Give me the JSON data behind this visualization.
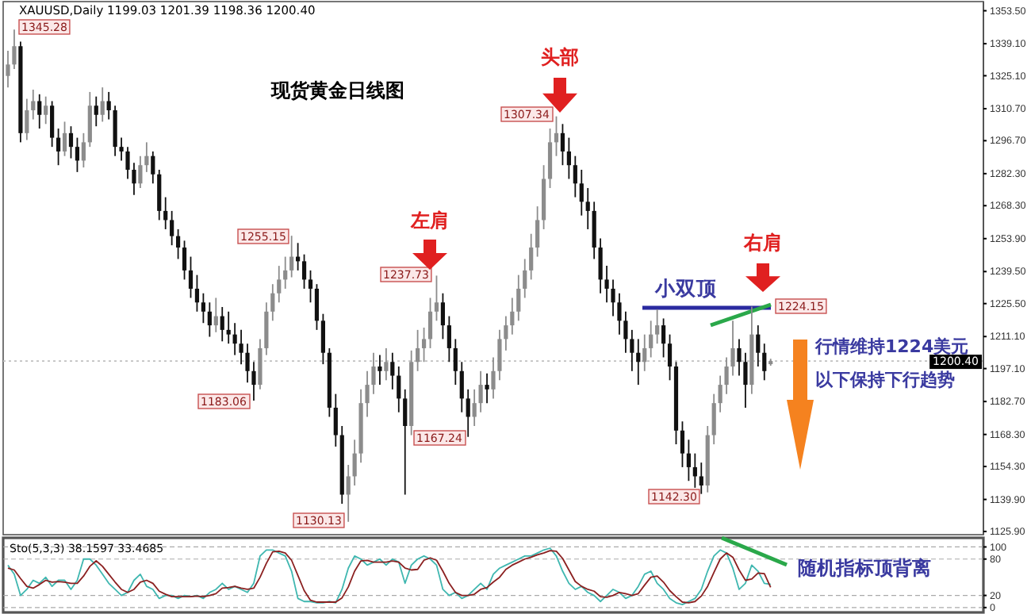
{
  "chart_data": [
    {
      "type": "candlestick",
      "title": "现货黄金日线图",
      "subtitle": "XAUUSD,Daily  1199.03 1201.39 1198.36 1200.40",
      "categories": [
        null,
        null,
        null,
        null,
        null,
        null,
        null,
        null,
        null,
        null,
        null,
        null,
        null,
        null,
        null,
        null,
        null,
        null,
        null,
        null,
        null,
        null,
        null,
        null,
        null,
        null,
        null,
        null,
        null,
        null,
        null,
        null,
        null,
        null,
        null,
        null,
        null,
        null,
        null,
        null,
        null,
        null,
        null,
        null,
        null,
        null,
        null,
        null,
        null,
        null,
        null,
        null,
        null,
        null,
        null,
        null,
        null,
        null,
        null,
        null,
        null,
        null,
        null,
        null,
        null,
        null,
        null,
        null,
        null,
        null,
        null,
        null,
        null,
        null,
        null,
        null,
        null,
        null,
        null,
        null,
        null,
        null,
        null,
        null,
        null,
        null,
        null,
        null,
        null,
        null,
        null,
        null,
        null,
        null,
        null,
        null,
        null,
        null,
        null,
        null,
        null,
        null,
        null,
        null,
        null,
        null,
        null,
        null,
        null,
        null,
        null,
        null,
        null,
        null,
        null,
        null,
        null,
        null,
        null,
        null,
        null,
        null,
        null,
        null,
        null,
        null,
        null,
        null,
        null,
        null,
        null,
        null,
        null,
        null,
        null,
        null,
        null,
        null,
        null,
        null,
        null,
        null,
        null,
        null,
        null,
        null,
        null,
        null,
        null,
        null,
        null,
        null,
        null,
        null,
        null
      ],
      "ohlc": [
        [
          1325,
          1336,
          1320,
          1330
        ],
        [
          1330,
          1345.28,
          1328,
          1338
        ],
        [
          1338,
          1340,
          1296,
          1300
        ],
        [
          1300,
          1315,
          1297,
          1310
        ],
        [
          1310,
          1319,
          1306,
          1314
        ],
        [
          1314,
          1317,
          1302,
          1308
        ],
        [
          1308,
          1316,
          1304,
          1312
        ],
        [
          1312,
          1314,
          1294,
          1298
        ],
        [
          1298,
          1302,
          1286,
          1292
        ],
        [
          1292,
          1305,
          1290,
          1300
        ],
        [
          1300,
          1303,
          1289,
          1294
        ],
        [
          1294,
          1298,
          1283,
          1288
        ],
        [
          1288,
          1300,
          1285,
          1296
        ],
        [
          1296,
          1318,
          1294,
          1312
        ],
        [
          1312,
          1316,
          1303,
          1308
        ],
        [
          1308,
          1320,
          1305,
          1314
        ],
        [
          1314,
          1318,
          1306,
          1310
        ],
        [
          1310,
          1312,
          1290,
          1294
        ],
        [
          1294,
          1298,
          1288,
          1292
        ],
        [
          1292,
          1294,
          1280,
          1284
        ],
        [
          1284,
          1287,
          1273,
          1278
        ],
        [
          1278,
          1290,
          1276,
          1286
        ],
        [
          1286,
          1296,
          1283,
          1290
        ],
        [
          1290,
          1292,
          1278,
          1282
        ],
        [
          1282,
          1284,
          1262,
          1266
        ],
        [
          1266,
          1272,
          1258,
          1262
        ],
        [
          1262,
          1266,
          1251,
          1255
        ],
        [
          1255,
          1258,
          1245,
          1250
        ],
        [
          1250,
          1253,
          1236,
          1240
        ],
        [
          1240,
          1246,
          1228,
          1232
        ],
        [
          1232,
          1238,
          1222,
          1226
        ],
        [
          1226,
          1230,
          1217,
          1222
        ],
        [
          1222,
          1226,
          1211,
          1216
        ],
        [
          1216,
          1228,
          1213,
          1220
        ],
        [
          1220,
          1224,
          1209,
          1214
        ],
        [
          1214,
          1222,
          1208,
          1212
        ],
        [
          1212,
          1217,
          1203,
          1208
        ],
        [
          1208,
          1214,
          1199,
          1204
        ],
        [
          1204,
          1208,
          1191,
          1196
        ],
        [
          1196,
          1200,
          1183.06,
          1190
        ],
        [
          1190,
          1210,
          1188,
          1206
        ],
        [
          1206,
          1226,
          1203,
          1222
        ],
        [
          1222,
          1234,
          1218,
          1230
        ],
        [
          1230,
          1242,
          1226,
          1236
        ],
        [
          1236,
          1246,
          1232,
          1240
        ],
        [
          1240,
          1255.15,
          1237,
          1246
        ],
        [
          1246,
          1252,
          1240,
          1244
        ],
        [
          1244,
          1247,
          1232,
          1236
        ],
        [
          1236,
          1240,
          1226,
          1232
        ],
        [
          1232,
          1234,
          1214,
          1218
        ],
        [
          1218,
          1221,
          1199,
          1204
        ],
        [
          1204,
          1206,
          1176,
          1180
        ],
        [
          1180,
          1186,
          1163,
          1168
        ],
        [
          1168,
          1172,
          1138,
          1142
        ],
        [
          1142,
          1155,
          1130.13,
          1150
        ],
        [
          1150,
          1166,
          1146,
          1160
        ],
        [
          1160,
          1188,
          1156,
          1182
        ],
        [
          1182,
          1196,
          1176,
          1190
        ],
        [
          1190,
          1204,
          1186,
          1198
        ],
        [
          1198,
          1203,
          1190,
          1196
        ],
        [
          1196,
          1206,
          1192,
          1200
        ],
        [
          1200,
          1204,
          1188,
          1194
        ],
        [
          1194,
          1198,
          1178,
          1184
        ],
        [
          1184,
          1188,
          1142,
          1172
        ],
        [
          1172,
          1205,
          1168,
          1200
        ],
        [
          1200,
          1214,
          1196,
          1206
        ],
        [
          1206,
          1215,
          1200,
          1210
        ],
        [
          1210,
          1228,
          1206,
          1222
        ],
        [
          1222,
          1237.73,
          1218,
          1226
        ],
        [
          1226,
          1230,
          1210,
          1216
        ],
        [
          1216,
          1220,
          1200,
          1206
        ],
        [
          1206,
          1210,
          1190,
          1196
        ],
        [
          1196,
          1200,
          1178,
          1184
        ],
        [
          1184,
          1188,
          1167.24,
          1176
        ],
        [
          1176,
          1188,
          1172,
          1182
        ],
        [
          1182,
          1196,
          1178,
          1190
        ],
        [
          1190,
          1195,
          1182,
          1188
        ],
        [
          1188,
          1202,
          1184,
          1196
        ],
        [
          1196,
          1214,
          1192,
          1210
        ],
        [
          1210,
          1220,
          1205,
          1216
        ],
        [
          1216,
          1228,
          1212,
          1222
        ],
        [
          1222,
          1238,
          1218,
          1232
        ],
        [
          1232,
          1245,
          1228,
          1240
        ],
        [
          1240,
          1256,
          1236,
          1250
        ],
        [
          1250,
          1268,
          1246,
          1262
        ],
        [
          1262,
          1286,
          1258,
          1280
        ],
        [
          1280,
          1302,
          1276,
          1296
        ],
        [
          1296,
          1307.34,
          1290,
          1300
        ],
        [
          1300,
          1304,
          1286,
          1292
        ],
        [
          1292,
          1298,
          1280,
          1286
        ],
        [
          1286,
          1290,
          1272,
          1278
        ],
        [
          1278,
          1284,
          1264,
          1270
        ],
        [
          1270,
          1276,
          1258,
          1266
        ],
        [
          1266,
          1270,
          1245,
          1250
        ],
        [
          1250,
          1254,
          1230,
          1236
        ],
        [
          1236,
          1242,
          1226,
          1232
        ],
        [
          1232,
          1236,
          1220,
          1226
        ],
        [
          1226,
          1230,
          1212,
          1218
        ],
        [
          1218,
          1222,
          1204,
          1210
        ],
        [
          1210,
          1214,
          1196,
          1204
        ],
        [
          1204,
          1210,
          1190,
          1200
        ],
        [
          1200,
          1212,
          1196,
          1206
        ],
        [
          1206,
          1218,
          1202,
          1212
        ],
        [
          1212,
          1223,
          1208,
          1216
        ],
        [
          1216,
          1219,
          1202,
          1208
        ],
        [
          1208,
          1212,
          1192,
          1198
        ],
        [
          1198,
          1200,
          1164,
          1170
        ],
        [
          1170,
          1174,
          1154,
          1160
        ],
        [
          1160,
          1166,
          1148,
          1154
        ],
        [
          1154,
          1160,
          1145,
          1150
        ],
        [
          1150,
          1156,
          1142.3,
          1146
        ],
        [
          1146,
          1172,
          1143,
          1168
        ],
        [
          1168,
          1186,
          1164,
          1182
        ],
        [
          1182,
          1194,
          1178,
          1190
        ],
        [
          1190,
          1202,
          1186,
          1198
        ],
        [
          1198,
          1218,
          1194,
          1206
        ],
        [
          1206,
          1210,
          1194,
          1200
        ],
        [
          1200,
          1204,
          1180,
          1190
        ],
        [
          1190,
          1224.15,
          1186,
          1212
        ],
        [
          1212,
          1216,
          1198,
          1204
        ],
        [
          1204,
          1208,
          1192,
          1196
        ],
        [
          1199.03,
          1201.39,
          1198.36,
          1200.4
        ],
        null,
        null,
        null,
        null,
        null,
        null,
        null,
        null,
        null,
        null,
        null,
        null,
        null,
        null,
        null,
        null,
        null,
        null,
        null,
        null,
        null,
        null,
        null,
        null,
        null,
        null,
        null,
        null,
        null,
        null,
        null,
        null,
        null
      ],
      "ylim": [
        1124.5,
        1357.5
      ],
      "yticks": [
        {
          "value": 1353.5,
          "label": "1353.50"
        },
        {
          "value": 1339.1,
          "label": "1339.10"
        },
        {
          "value": 1325.1,
          "label": "1325.10"
        },
        {
          "value": 1310.7,
          "label": "1310.70"
        },
        {
          "value": 1296.7,
          "label": "1296.70"
        },
        {
          "value": 1282.3,
          "label": "1282.30"
        },
        {
          "value": 1268.3,
          "label": "1268.30"
        },
        {
          "value": 1253.9,
          "label": "1253.90"
        },
        {
          "value": 1239.5,
          "label": "1239.50"
        },
        {
          "value": 1225.5,
          "label": "1225.50"
        },
        {
          "value": 1211.1,
          "label": "1211.10"
        },
        {
          "value": 1197.1,
          "label": "1197.10"
        },
        {
          "value": 1182.7,
          "label": "1182.70"
        },
        {
          "value": 1168.3,
          "label": "1168.30"
        },
        {
          "value": 1154.3,
          "label": "1154.30"
        },
        {
          "value": 1139.9,
          "label": "1139.90"
        },
        {
          "value": 1125.9,
          "label": "1125.90"
        }
      ],
      "ref_lines": [
        {
          "axis": "y",
          "value": 1200.4,
          "label": "1200.40",
          "color": "#c0c0c0",
          "line_style": "dotted"
        }
      ],
      "annotations": [
        "1345.28",
        "1255.15",
        "1183.06",
        "1130.13",
        "1237.73",
        "1167.24",
        "1307.34",
        "1142.30",
        "1224.15",
        "头部",
        "左肩",
        "右肩",
        "小双顶",
        "行情维持1224美元以下保持下行趋势"
      ]
    },
    {
      "type": "line",
      "title": "Sto(5,3,3) 38.1597 33.4685",
      "categories": [
        null,
        null,
        null,
        null,
        null,
        null,
        null,
        null,
        null,
        null,
        null,
        null,
        null,
        null,
        null,
        null,
        null,
        null,
        null,
        null,
        null,
        null,
        null,
        null,
        null,
        null,
        null,
        null,
        null,
        null,
        null,
        null,
        null,
        null,
        null,
        null,
        null,
        null,
        null,
        null,
        null,
        null,
        null,
        null,
        null,
        null,
        null,
        null,
        null,
        null,
        null,
        null,
        null,
        null,
        null,
        null,
        null,
        null,
        null,
        null,
        null,
        null,
        null,
        null,
        null,
        null,
        null,
        null,
        null,
        null,
        null,
        null,
        null,
        null,
        null,
        null,
        null,
        null,
        null,
        null,
        null,
        null,
        null,
        null,
        null,
        null,
        null,
        null,
        null,
        null,
        null,
        null,
        null,
        null,
        null,
        null,
        null,
        null,
        null,
        null,
        null,
        null,
        null,
        null,
        null,
        null,
        null,
        null,
        null,
        null,
        null,
        null,
        null,
        null,
        null,
        null,
        null,
        null,
        null,
        null,
        null,
        null,
        null,
        null,
        null,
        null,
        null,
        null,
        null,
        null,
        null,
        null,
        null,
        null,
        null,
        null,
        null,
        null,
        null,
        null,
        null,
        null,
        null,
        null,
        null,
        null,
        null,
        null,
        null,
        null,
        null,
        null,
        null,
        null,
        null
      ],
      "series": [
        {
          "color": "#3fb7b0",
          "values": [
            70,
            55,
            20,
            30,
            45,
            40,
            50,
            35,
            45,
            45,
            30,
            45,
            80,
            80,
            70,
            55,
            40,
            30,
            20,
            25,
            45,
            55,
            35,
            30,
            15,
            20,
            20,
            15,
            20,
            18,
            20,
            15,
            25,
            30,
            40,
            30,
            35,
            30,
            25,
            40,
            85,
            95,
            95,
            90,
            85,
            60,
            15,
            10,
            10,
            8,
            8,
            10,
            8,
            30,
            65,
            85,
            80,
            70,
            75,
            80,
            70,
            80,
            75,
            40,
            70,
            80,
            85,
            80,
            70,
            30,
            20,
            25,
            15,
            20,
            30,
            40,
            30,
            55,
            65,
            70,
            75,
            80,
            85,
            85,
            90,
            95,
            98,
            85,
            60,
            40,
            30,
            35,
            25,
            20,
            10,
            20,
            30,
            25,
            15,
            20,
            35,
            55,
            60,
            40,
            30,
            15,
            8,
            5,
            10,
            15,
            30,
            60,
            85,
            95,
            90,
            65,
            30,
            40,
            70,
            60,
            40,
            38.1597,
            null,
            null,
            null,
            null,
            null,
            null,
            null,
            null,
            null,
            null,
            null,
            null,
            null,
            null,
            null,
            null,
            null,
            null,
            null,
            null,
            null,
            null,
            null,
            null,
            null,
            null,
            null,
            null,
            null,
            null,
            null,
            null,
            null
          ]
        },
        {
          "color": "#8b2020",
          "values": [
            65,
            62,
            48,
            35,
            32,
            38,
            45,
            42,
            43,
            42,
            40,
            40,
            52,
            68,
            77,
            68,
            55,
            42,
            30,
            25,
            30,
            42,
            45,
            40,
            27,
            22,
            18,
            18,
            18,
            18,
            19,
            18,
            20,
            23,
            32,
            33,
            35,
            32,
            30,
            32,
            50,
            73,
            92,
            93,
            90,
            78,
            53,
            28,
            12,
            9,
            9,
            9,
            9,
            16,
            34,
            60,
            77,
            78,
            75,
            75,
            75,
            77,
            75,
            65,
            62,
            63,
            78,
            82,
            78,
            60,
            40,
            25,
            20,
            20,
            22,
            30,
            33,
            42,
            50,
            63,
            70,
            75,
            80,
            83,
            87,
            90,
            94,
            93,
            81,
            62,
            43,
            35,
            30,
            27,
            18,
            17,
            20,
            25,
            23,
            20,
            23,
            37,
            50,
            52,
            42,
            28,
            18,
            9,
            8,
            10,
            19,
            35,
            58,
            80,
            90,
            83,
            62,
            45,
            47,
            57,
            56,
            33.4685,
            null,
            null,
            null,
            null,
            null,
            null,
            null,
            null,
            null,
            null,
            null,
            null,
            null,
            null,
            null,
            null,
            null,
            null,
            null,
            null,
            null,
            null,
            null,
            null,
            null,
            null,
            null,
            null,
            null,
            null,
            null,
            null,
            null
          ]
        }
      ],
      "ylim": [
        -8,
        115
      ],
      "yticks": [
        100,
        80,
        20,
        0
      ],
      "grid": "y",
      "annotations": [
        "随机指标顶背离"
      ]
    }
  ]
}
